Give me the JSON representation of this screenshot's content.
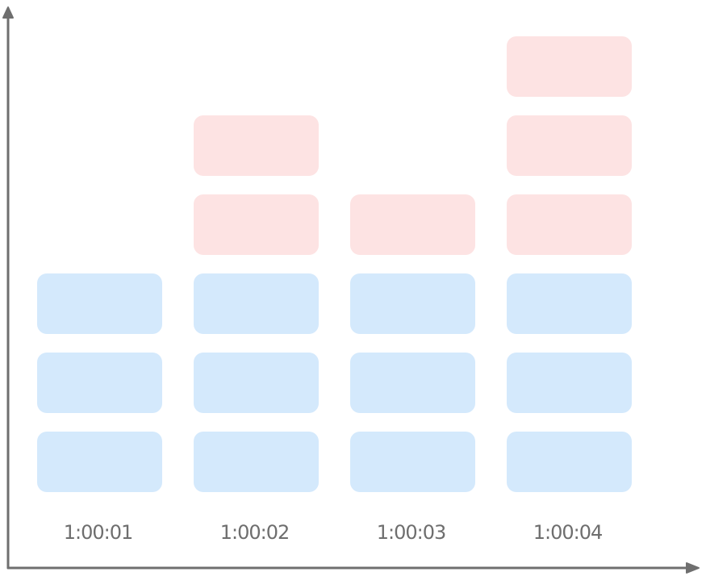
{
  "chart_data": {
    "type": "bar",
    "stacked": true,
    "categories": [
      "1:00:01",
      "1:00:02",
      "1:00:03",
      "1:00:04"
    ],
    "series": [
      {
        "color": "#d4e9fc",
        "values": [
          3,
          3,
          3,
          3
        ]
      },
      {
        "color": "#fde3e3",
        "values": [
          0,
          2,
          1,
          3
        ]
      }
    ],
    "title": "",
    "xlabel": "",
    "ylabel": "",
    "ylim": [
      0,
      6
    ],
    "grid": false,
    "legend": "none"
  }
}
